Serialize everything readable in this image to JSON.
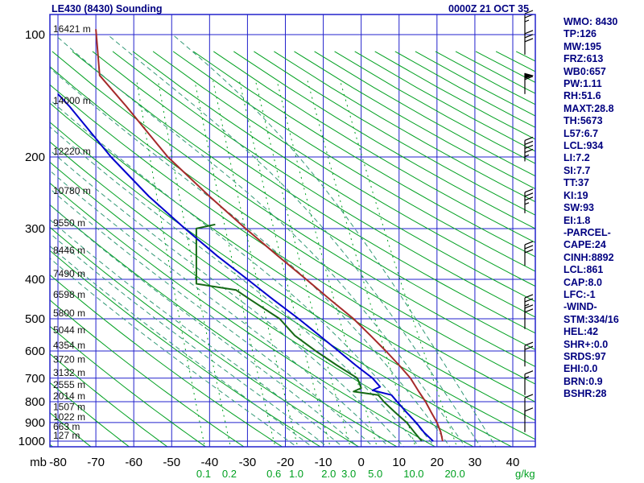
{
  "title": "LE430 (8430) Sounding",
  "datetime": "0000Z 21 OCT 35",
  "colors": {
    "grid": "#2222cc",
    "dry_adiabat": "#00a020",
    "moist_adiabat": "#339977",
    "mixing_ratio": "#00a020",
    "panel_text": "#000080",
    "axis_text": "#000000",
    "barb": "#000000"
  },
  "axes": {
    "pressure_unit": "mb",
    "mixing_unit": "g/kg",
    "height_labels": [
      {
        "p": 100,
        "label": "16421 m"
      },
      {
        "p": 150,
        "label": "14000 m"
      },
      {
        "p": 200,
        "label": "12220 m"
      },
      {
        "p": 250,
        "label": "10780 m"
      },
      {
        "p": 300,
        "label": "9550 m"
      },
      {
        "p": 350,
        "label": "8446 m"
      },
      {
        "p": 400,
        "label": "7490 m"
      },
      {
        "p": 450,
        "label": "6598 m"
      },
      {
        "p": 500,
        "label": "5800 m"
      },
      {
        "p": 550,
        "label": "5044 m"
      },
      {
        "p": 600,
        "label": "4354 m"
      },
      {
        "p": 650,
        "label": "3720 m"
      },
      {
        "p": 700,
        "label": "3132 m"
      },
      {
        "p": 750,
        "label": "2555 m"
      },
      {
        "p": 800,
        "label": "2014 m"
      },
      {
        "p": 850,
        "label": "1507 m"
      },
      {
        "p": 900,
        "label": "1022 m"
      },
      {
        "p": 950,
        "label": "663 m"
      },
      {
        "p": 1000,
        "label": "127 m"
      }
    ]
  },
  "panel": {
    "lines": [
      "WMO: 8430",
      "TP:126",
      "MW:195",
      "FRZ:613",
      "WB0:657",
      "PW:1.11",
      "RH:51.6",
      "MAXT:28.8",
      "TH:5673",
      "L57:6.7",
      "LCL:934",
      "LI:7.2",
      "SI:7.7",
      "TT:37",
      "KI:19",
      "SW:93",
      "EI:1.8",
      "-PARCEL-",
      "CAPE:24",
      "CINH:8892",
      "LCL:861",
      "CAP:8.0",
      "LFC:-1",
      "-WIND-",
      "STM:334/16",
      "HEL:42",
      "SHR+:0.0",
      "SRDS:97",
      "EHI:0.0",
      "BRN:0.9",
      "BSHR:28"
    ]
  },
  "chart_data": {
    "type": "line",
    "title": "LE430 (8430) Sounding",
    "pressure_axis": {
      "unit": "mb",
      "scale": "log",
      "ticks": [
        100,
        200,
        300,
        400,
        500,
        600,
        700,
        800,
        900,
        1000
      ],
      "range": [
        88,
        1030
      ]
    },
    "temp_axis": {
      "unit": "C",
      "ticks": [
        -80,
        -70,
        -60,
        -50,
        -40,
        -30,
        -20,
        -10,
        0,
        10,
        20,
        30,
        40
      ],
      "range": [
        -82,
        46
      ]
    },
    "series": [
      {
        "name": "temperature",
        "color": "#a52a2a",
        "points": [
          [
            1000,
            21.5
          ],
          [
            950,
            21
          ],
          [
            900,
            20
          ],
          [
            850,
            18.5
          ],
          [
            800,
            17
          ],
          [
            750,
            15
          ],
          [
            700,
            13
          ],
          [
            650,
            10
          ],
          [
            600,
            6.5
          ],
          [
            550,
            2.5
          ],
          [
            500,
            -2
          ],
          [
            450,
            -8
          ],
          [
            400,
            -14.5
          ],
          [
            350,
            -22
          ],
          [
            300,
            -30.5
          ],
          [
            250,
            -40
          ],
          [
            200,
            -51
          ],
          [
            150,
            -62
          ],
          [
            126,
            -69
          ],
          [
            97,
            -70
          ]
        ]
      },
      {
        "name": "dewpoint",
        "color": "#156915",
        "points": [
          [
            1000,
            16
          ],
          [
            950,
            14
          ],
          [
            900,
            12
          ],
          [
            850,
            9
          ],
          [
            800,
            6
          ],
          [
            770,
            4.5
          ],
          [
            755,
            -2
          ],
          [
            740,
            0
          ],
          [
            700,
            -1
          ],
          [
            650,
            -6.5
          ],
          [
            600,
            -12
          ],
          [
            550,
            -17.5
          ],
          [
            500,
            -21.5
          ],
          [
            450,
            -29
          ],
          [
            425,
            -33
          ],
          [
            410,
            -43.5
          ],
          [
            350,
            -43.5
          ],
          [
            300,
            -43.5
          ],
          [
            293,
            -38.5
          ]
        ]
      },
      {
        "name": "wetbulb",
        "color": "#0000cd",
        "points": [
          [
            1000,
            19
          ],
          [
            950,
            16.5
          ],
          [
            900,
            14.5
          ],
          [
            850,
            12
          ],
          [
            800,
            9.5
          ],
          [
            770,
            8
          ],
          [
            750,
            3
          ],
          [
            735,
            5
          ],
          [
            700,
            3
          ],
          [
            650,
            -1.5
          ],
          [
            600,
            -6
          ],
          [
            550,
            -11
          ],
          [
            500,
            -16.5
          ],
          [
            450,
            -23
          ],
          [
            400,
            -30
          ],
          [
            350,
            -38
          ],
          [
            300,
            -46.5
          ],
          [
            250,
            -56
          ],
          [
            200,
            -66
          ],
          [
            150,
            -77
          ],
          [
            140,
            -80
          ]
        ]
      }
    ],
    "mixing_ratio_lines": [
      {
        "value": 0.1,
        "label": "0.1"
      },
      {
        "value": 0.2,
        "label": "0.2"
      },
      {
        "value": 0.6,
        "label": "0.6"
      },
      {
        "value": 1.0,
        "label": "1.0"
      },
      {
        "value": 2.0,
        "label": "2.0"
      },
      {
        "value": 3.0,
        "label": "3.0"
      },
      {
        "value": 5.0,
        "label": "5.0"
      },
      {
        "value": 10.0,
        "label": "10.0"
      },
      {
        "value": 20.0,
        "label": "20.0"
      }
    ],
    "background_lines": {
      "dry_adiabats_theta_K": {
        "start": 190,
        "end": 600,
        "step": 10
      },
      "moist_adiabats_thetaw_C": {
        "start": -16,
        "end": 36,
        "step": 4
      }
    },
    "wind_barbs": [
      {
        "p": 100,
        "speed": 25
      },
      {
        "p": 112,
        "speed": 30
      },
      {
        "p": 140,
        "speed": 60
      },
      {
        "p": 205,
        "speed": 45
      },
      {
        "p": 275,
        "speed": 35
      },
      {
        "p": 370,
        "speed": 30
      },
      {
        "p": 500,
        "speed": 25
      },
      {
        "p": 530,
        "speed": 20
      },
      {
        "p": 655,
        "speed": 20
      },
      {
        "p": 770,
        "speed": 15
      },
      {
        "p": 880,
        "speed": 10
      },
      {
        "p": 950,
        "speed": 10
      }
    ]
  }
}
